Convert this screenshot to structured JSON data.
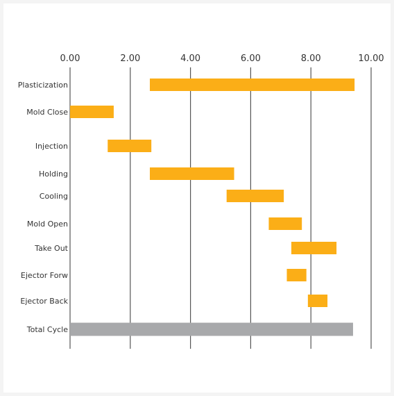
{
  "chart_data": {
    "type": "bar",
    "orientation": "horizontal",
    "subtype": "gantt",
    "title": "",
    "xlabel": "",
    "ylabel": "",
    "xlim": [
      0,
      10
    ],
    "x_ticks": [
      "0.00",
      "2.00",
      "4.00",
      "6.00",
      "8.00",
      "10.00"
    ],
    "x_tick_values": [
      0,
      2,
      4,
      6,
      8,
      10
    ],
    "x_axis_position": "top",
    "grid": "vertical",
    "legend": "none",
    "categories": [
      "Plasticization",
      "Mold Close",
      "Injection",
      "Holding",
      "Cooling",
      "Mold Open",
      "Take Out",
      "Ejector Forw",
      "Ejector Back",
      "Total Cycle"
    ],
    "tasks": [
      {
        "label": "Plasticization",
        "start": 2.65,
        "end": 9.45,
        "color": "#fbae17"
      },
      {
        "label": "Mold Close",
        "start": 0.0,
        "end": 1.45,
        "color": "#fbae17"
      },
      {
        "label": "Injection",
        "start": 1.25,
        "end": 2.7,
        "color": "#fbae17"
      },
      {
        "label": "Holding",
        "start": 2.65,
        "end": 5.45,
        "color": "#fbae17"
      },
      {
        "label": "Cooling",
        "start": 5.2,
        "end": 7.1,
        "color": "#fbae17"
      },
      {
        "label": "Mold Open",
        "start": 6.6,
        "end": 7.7,
        "color": "#fbae17"
      },
      {
        "label": "Take Out",
        "start": 7.35,
        "end": 8.85,
        "color": "#fbae17"
      },
      {
        "label": "Ejector Forw",
        "start": 7.2,
        "end": 7.85,
        "color": "#fbae17"
      },
      {
        "label": "Ejector Back",
        "start": 7.9,
        "end": 8.55,
        "color": "#fbae17"
      },
      {
        "label": "Total Cycle",
        "start": 0.0,
        "end": 9.4,
        "color": "#a8a9ab"
      }
    ]
  }
}
